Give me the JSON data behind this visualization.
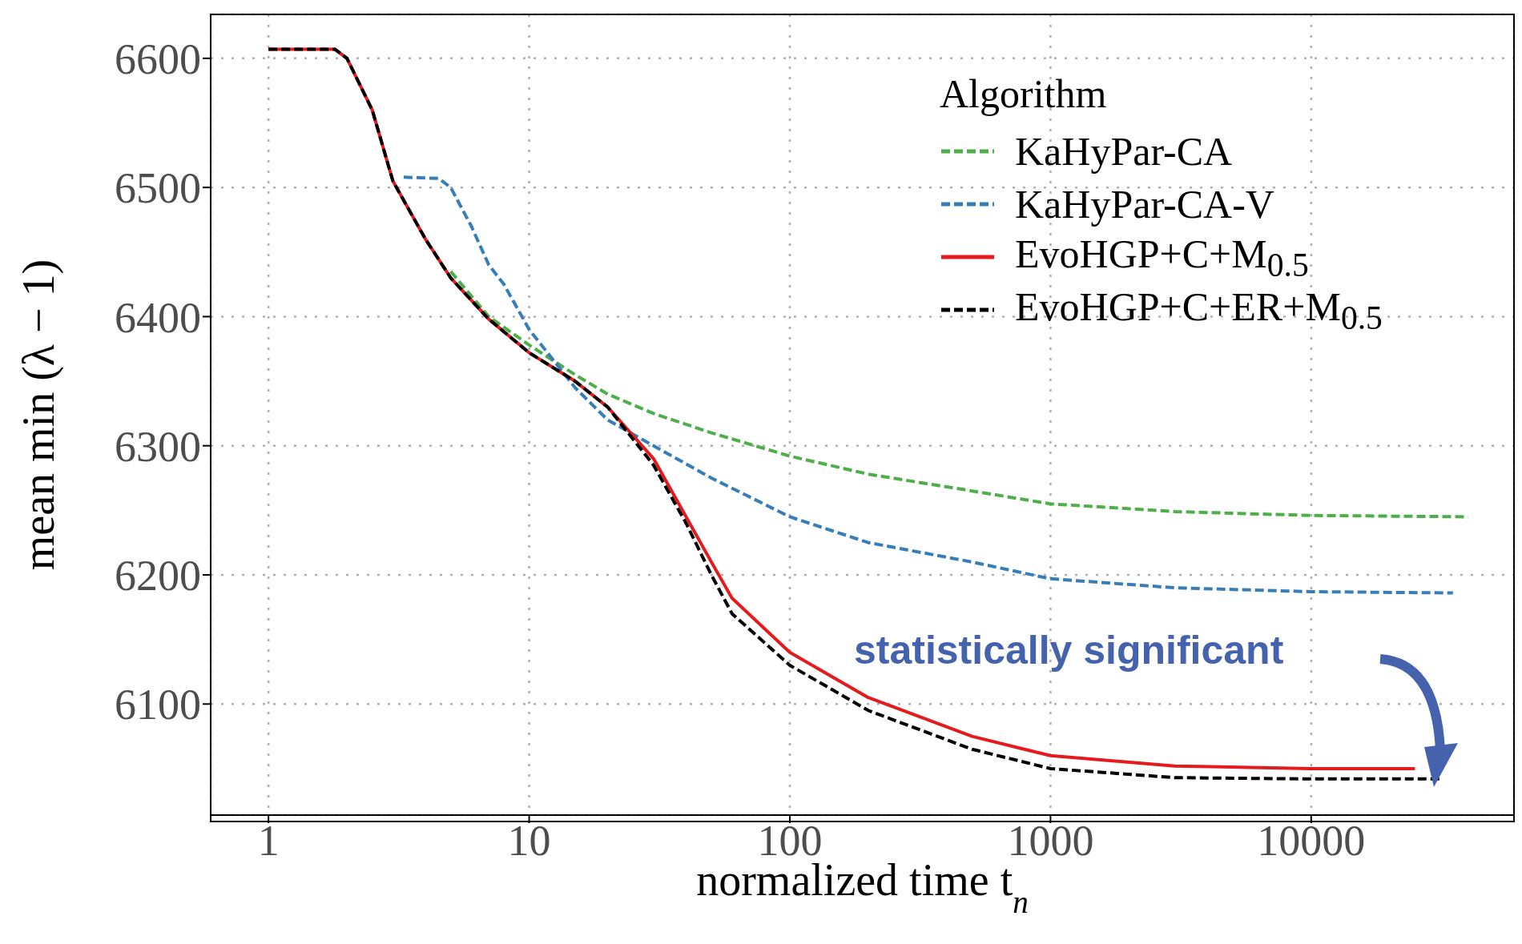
{
  "chart_data": {
    "type": "line",
    "xlabel": "normalized time t$_{n}$",
    "ylabel": "mean min (λ − 1)",
    "legend_title": "Algorithm",
    "legend": "top right",
    "grid": true,
    "log": "x",
    "xlim": [
      0.6,
      60000
    ],
    "xticks": [
      1,
      10,
      100,
      1000,
      10000
    ],
    "ylim": [
      6014,
      6634
    ],
    "yticks": [
      6100,
      6200,
      6300,
      6400,
      6500,
      6600
    ],
    "annotations": [
      "statistically significant"
    ],
    "series": [
      {
        "name": "KaHyPar-CA",
        "color": "#4daf4a",
        "line_style": "dashed",
        "x": [
          5,
          7,
          10,
          15,
          20,
          30,
          50,
          100,
          200,
          500,
          1000,
          3000,
          10000,
          40000
        ],
        "values": [
          6435,
          6400,
          6378,
          6355,
          6340,
          6325,
          6310,
          6292,
          6278,
          6265,
          6255,
          6249,
          6246,
          6245
        ]
      },
      {
        "name": "KaHyPar-CA-V",
        "color": "#377eb8",
        "line_style": "dashed",
        "x": [
          3.3,
          4.5,
          5,
          6,
          7,
          8,
          10,
          15,
          20,
          30,
          50,
          100,
          200,
          500,
          1000,
          3000,
          10000,
          35000
        ],
        "values": [
          6508,
          6507,
          6500,
          6470,
          6440,
          6425,
          6390,
          6345,
          6320,
          6300,
          6275,
          6245,
          6225,
          6210,
          6197,
          6190,
          6187,
          6186
        ]
      },
      {
        "name": "EvoHGP+C+M$_{0.5}$",
        "color": "#e41a1c",
        "line_style": "solid",
        "x": [
          1,
          1.8,
          2,
          2.5,
          3,
          4,
          5,
          7,
          10,
          15,
          20,
          30,
          40,
          50,
          60,
          100,
          200,
          500,
          1000,
          3000,
          10000,
          25000
        ],
        "values": [
          6607,
          6607,
          6600,
          6560,
          6505,
          6460,
          6430,
          6398,
          6372,
          6350,
          6330,
          6290,
          6245,
          6210,
          6182,
          6140,
          6105,
          6075,
          6060,
          6052,
          6050,
          6050
        ]
      },
      {
        "name": "EvoHGP+C+ER+M$_{0.5}$",
        "color": "#000000",
        "line_style": "dashed",
        "x": [
          1,
          1.8,
          2,
          2.5,
          3,
          4,
          5,
          7,
          10,
          15,
          20,
          30,
          40,
          50,
          60,
          100,
          200,
          500,
          1000,
          3000,
          10000,
          32000
        ],
        "values": [
          6607,
          6607,
          6600,
          6560,
          6505,
          6460,
          6430,
          6398,
          6372,
          6350,
          6330,
          6285,
          6240,
          6200,
          6170,
          6130,
          6095,
          6065,
          6050,
          6043,
          6042,
          6042
        ]
      }
    ]
  }
}
